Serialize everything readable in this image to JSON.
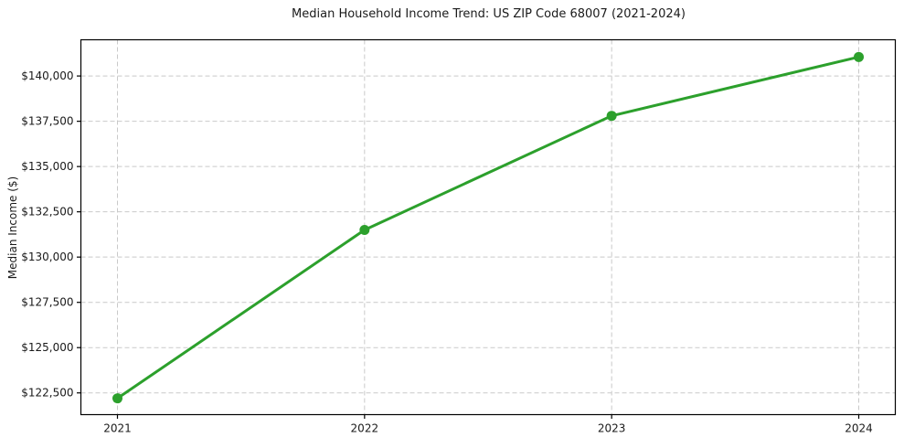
{
  "figure": {
    "background": "#ffffff",
    "spine_color": "#000000"
  },
  "chart_data": {
    "type": "line",
    "title": "Median Household Income Trend: US ZIP Code 68007 (2021-2024)",
    "xlabel": "",
    "ylabel": "Median Income ($)",
    "categories": [
      "2021",
      "2022",
      "2023",
      "2024"
    ],
    "series": [
      {
        "values": [
          122200,
          131500,
          137800,
          141050
        ],
        "color": "#2ca02c",
        "marker": "circle",
        "line_width": 3,
        "marker_radius": 5.5
      }
    ],
    "ylim": [
      121300,
      142000
    ],
    "yticks": [
      {
        "value": 122500,
        "label": "$122,500"
      },
      {
        "value": 125000,
        "label": "$125,000"
      },
      {
        "value": 127500,
        "label": "$127,500"
      },
      {
        "value": 130000,
        "label": "$130,000"
      },
      {
        "value": 132500,
        "label": "$132,500"
      },
      {
        "value": 135000,
        "label": "$135,000"
      },
      {
        "value": 137500,
        "label": "$137,500"
      },
      {
        "value": 140000,
        "label": "$140,000"
      }
    ],
    "grid": "dashed",
    "grid_color": "#c9c9c9",
    "legend": "none"
  }
}
